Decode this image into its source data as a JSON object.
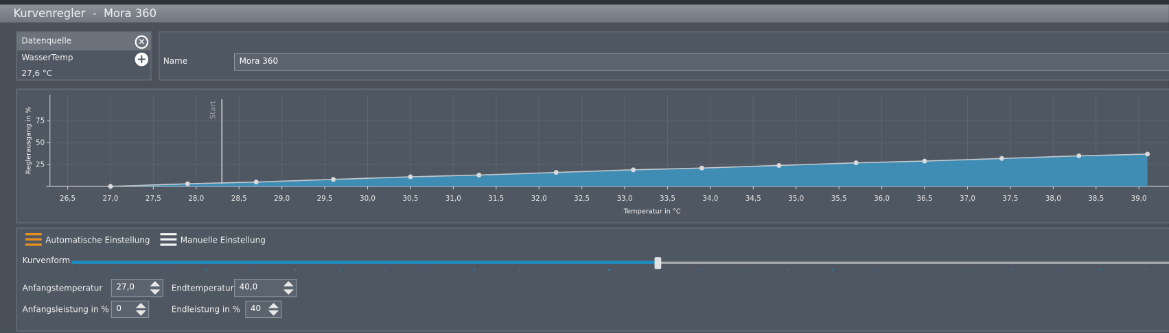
{
  "window": {
    "title": "Kurvenregler  -  Mora 360"
  },
  "data_source": {
    "header": "Datenquelle",
    "sensor": "WasserTemp",
    "reading": "27,6 °C"
  },
  "name_field": {
    "label": "Name",
    "value": "Mora 360"
  },
  "chart_data": {
    "type": "area",
    "y_label": "Reglerausgang in %",
    "x_label": "Temperatur in °C",
    "x": [
      27.0,
      27.9,
      28.7,
      29.6,
      30.5,
      31.3,
      32.2,
      33.1,
      33.9,
      34.8,
      35.7,
      36.5,
      37.4,
      38.3,
      39.1
    ],
    "values": [
      0,
      3,
      5,
      8,
      11,
      13,
      16,
      19,
      21,
      24,
      27,
      29,
      32,
      35,
      37
    ],
    "xlim": [
      26.25,
      39.35
    ],
    "ylim": [
      0,
      105
    ],
    "xticks": [
      {
        "value": 26.5,
        "label": "26,5"
      },
      {
        "value": 27.0,
        "label": "27,0"
      },
      {
        "value": 27.5,
        "label": "27,5"
      },
      {
        "value": 28.0,
        "label": "28,0"
      },
      {
        "value": 28.5,
        "label": "28,5"
      },
      {
        "value": 29.0,
        "label": "29,0"
      },
      {
        "value": 29.5,
        "label": "29,5"
      },
      {
        "value": 30.0,
        "label": "30,0"
      },
      {
        "value": 30.5,
        "label": "30,5"
      },
      {
        "value": 31.0,
        "label": "31,0"
      },
      {
        "value": 31.5,
        "label": "31,5"
      },
      {
        "value": 32.0,
        "label": "32,0"
      },
      {
        "value": 32.5,
        "label": "32,5"
      },
      {
        "value": 33.0,
        "label": "33,0"
      },
      {
        "value": 33.5,
        "label": "33,5"
      },
      {
        "value": 34.0,
        "label": "34,0"
      },
      {
        "value": 34.5,
        "label": "34,5"
      },
      {
        "value": 35.0,
        "label": "35,0"
      },
      {
        "value": 35.5,
        "label": "35,5"
      },
      {
        "value": 36.0,
        "label": "36,0"
      },
      {
        "value": 36.5,
        "label": "36,5"
      },
      {
        "value": 37.0,
        "label": "37,0"
      },
      {
        "value": 37.5,
        "label": "37,5"
      },
      {
        "value": 38.0,
        "label": "38,0"
      },
      {
        "value": 38.5,
        "label": "38,5"
      },
      {
        "value": 39.0,
        "label": "39,0"
      }
    ],
    "yticks": [
      25,
      50,
      75
    ],
    "grid": true,
    "color": "#3f8db5",
    "line_color": "#c4c8cc",
    "annotations": [
      {
        "text": "Start",
        "x": 28.3
      }
    ]
  },
  "modes": [
    "Automatische Einstellung",
    "Manuelle Einstellung"
  ],
  "curve_shape": {
    "label": "Kurvenform"
  },
  "fields": [
    {
      "label": "Anfangstemperatur",
      "value": "27,0"
    },
    {
      "label": "Endtemperatur",
      "value": "40,0"
    },
    {
      "label": "Anfangsleistung in %",
      "value": "0"
    },
    {
      "label": "Endleistung in %",
      "value": "40"
    }
  ]
}
